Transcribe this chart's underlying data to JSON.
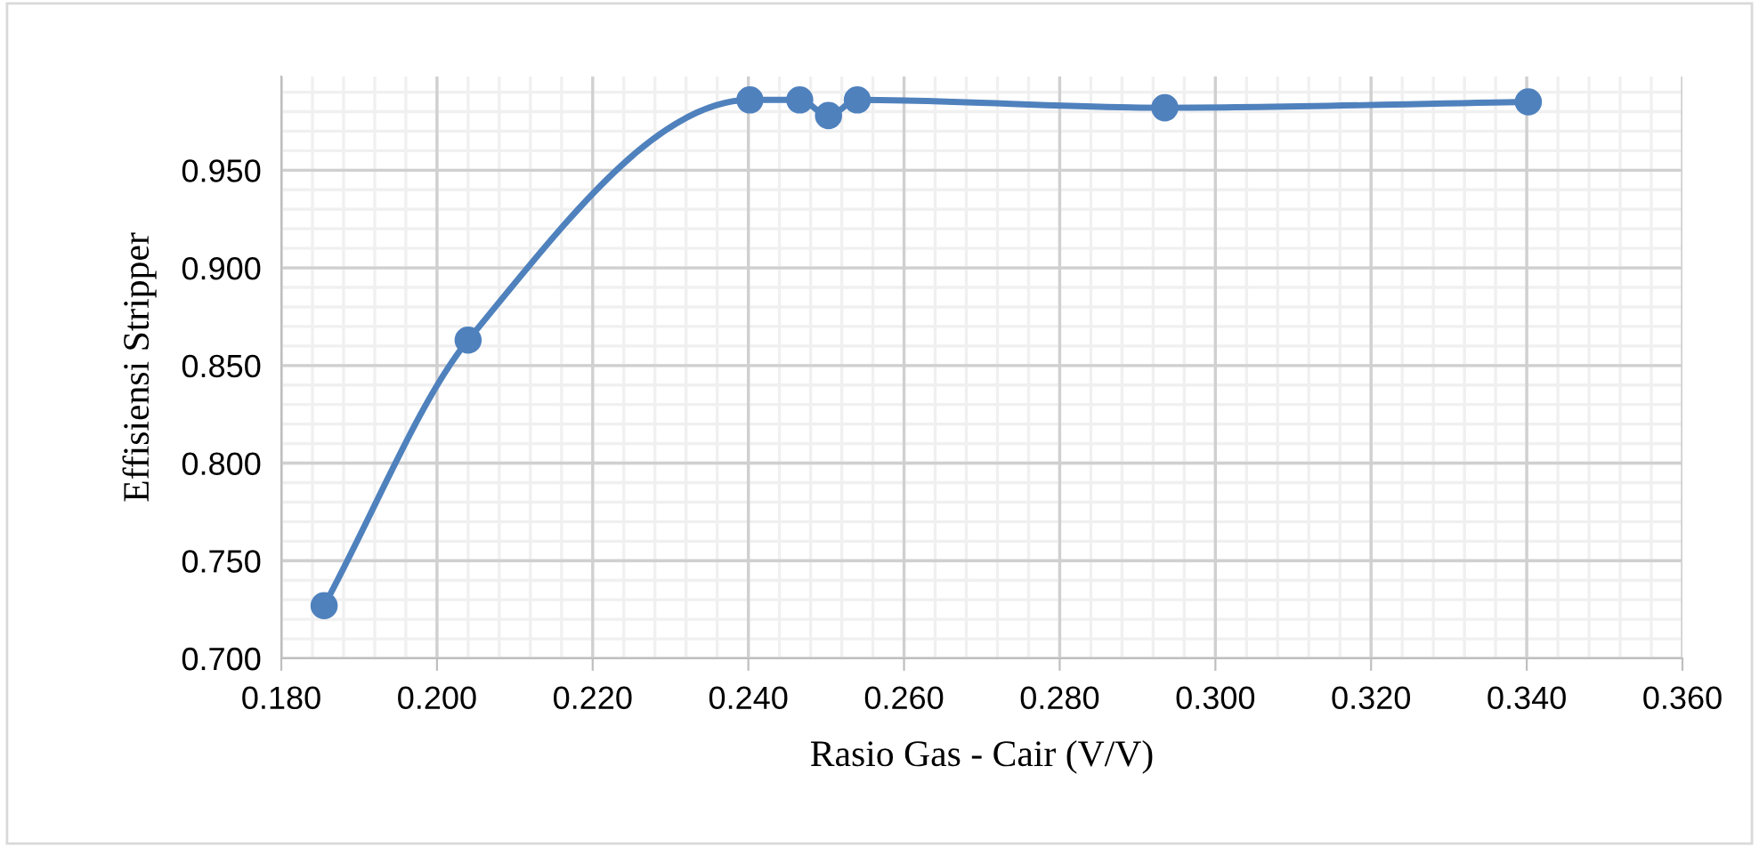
{
  "chart_data": {
    "type": "line",
    "xlabel": "Rasio Gas - Cair (V/V)",
    "ylabel": "Effisiensi Stripper",
    "x": [
      0.1855,
      0.204,
      0.2402,
      0.2466,
      0.2503,
      0.254,
      0.2935,
      0.3402
    ],
    "series": [
      {
        "color": "#4f81bd",
        "values": [
          0.727,
          0.863,
          0.986,
          0.986,
          0.978,
          0.986,
          0.982,
          0.985
        ]
      }
    ],
    "xlim": [
      0.18,
      0.36
    ],
    "xticks": [
      {
        "value": 0.18,
        "label": "0.180"
      },
      {
        "value": 0.2,
        "label": "0.200"
      },
      {
        "value": 0.22,
        "label": "0.220"
      },
      {
        "value": 0.24,
        "label": "0.240"
      },
      {
        "value": 0.26,
        "label": "0.260"
      },
      {
        "value": 0.28,
        "label": "0.280"
      },
      {
        "value": 0.3,
        "label": "0.300"
      },
      {
        "value": 0.32,
        "label": "0.320"
      },
      {
        "value": 0.34,
        "label": "0.340"
      },
      {
        "value": 0.36,
        "label": "0.360"
      }
    ],
    "ylim": [
      0.7,
      0.998
    ],
    "yticks": [
      {
        "value": 0.7,
        "label": "0.700"
      },
      {
        "value": 0.75,
        "label": "0.750"
      },
      {
        "value": 0.8,
        "label": "0.800"
      },
      {
        "value": 0.85,
        "label": "0.850"
      },
      {
        "value": 0.9,
        "label": "0.900"
      },
      {
        "value": 0.95,
        "label": "0.950"
      }
    ],
    "grid": true,
    "marker": "circle",
    "line_style": "solid"
  }
}
